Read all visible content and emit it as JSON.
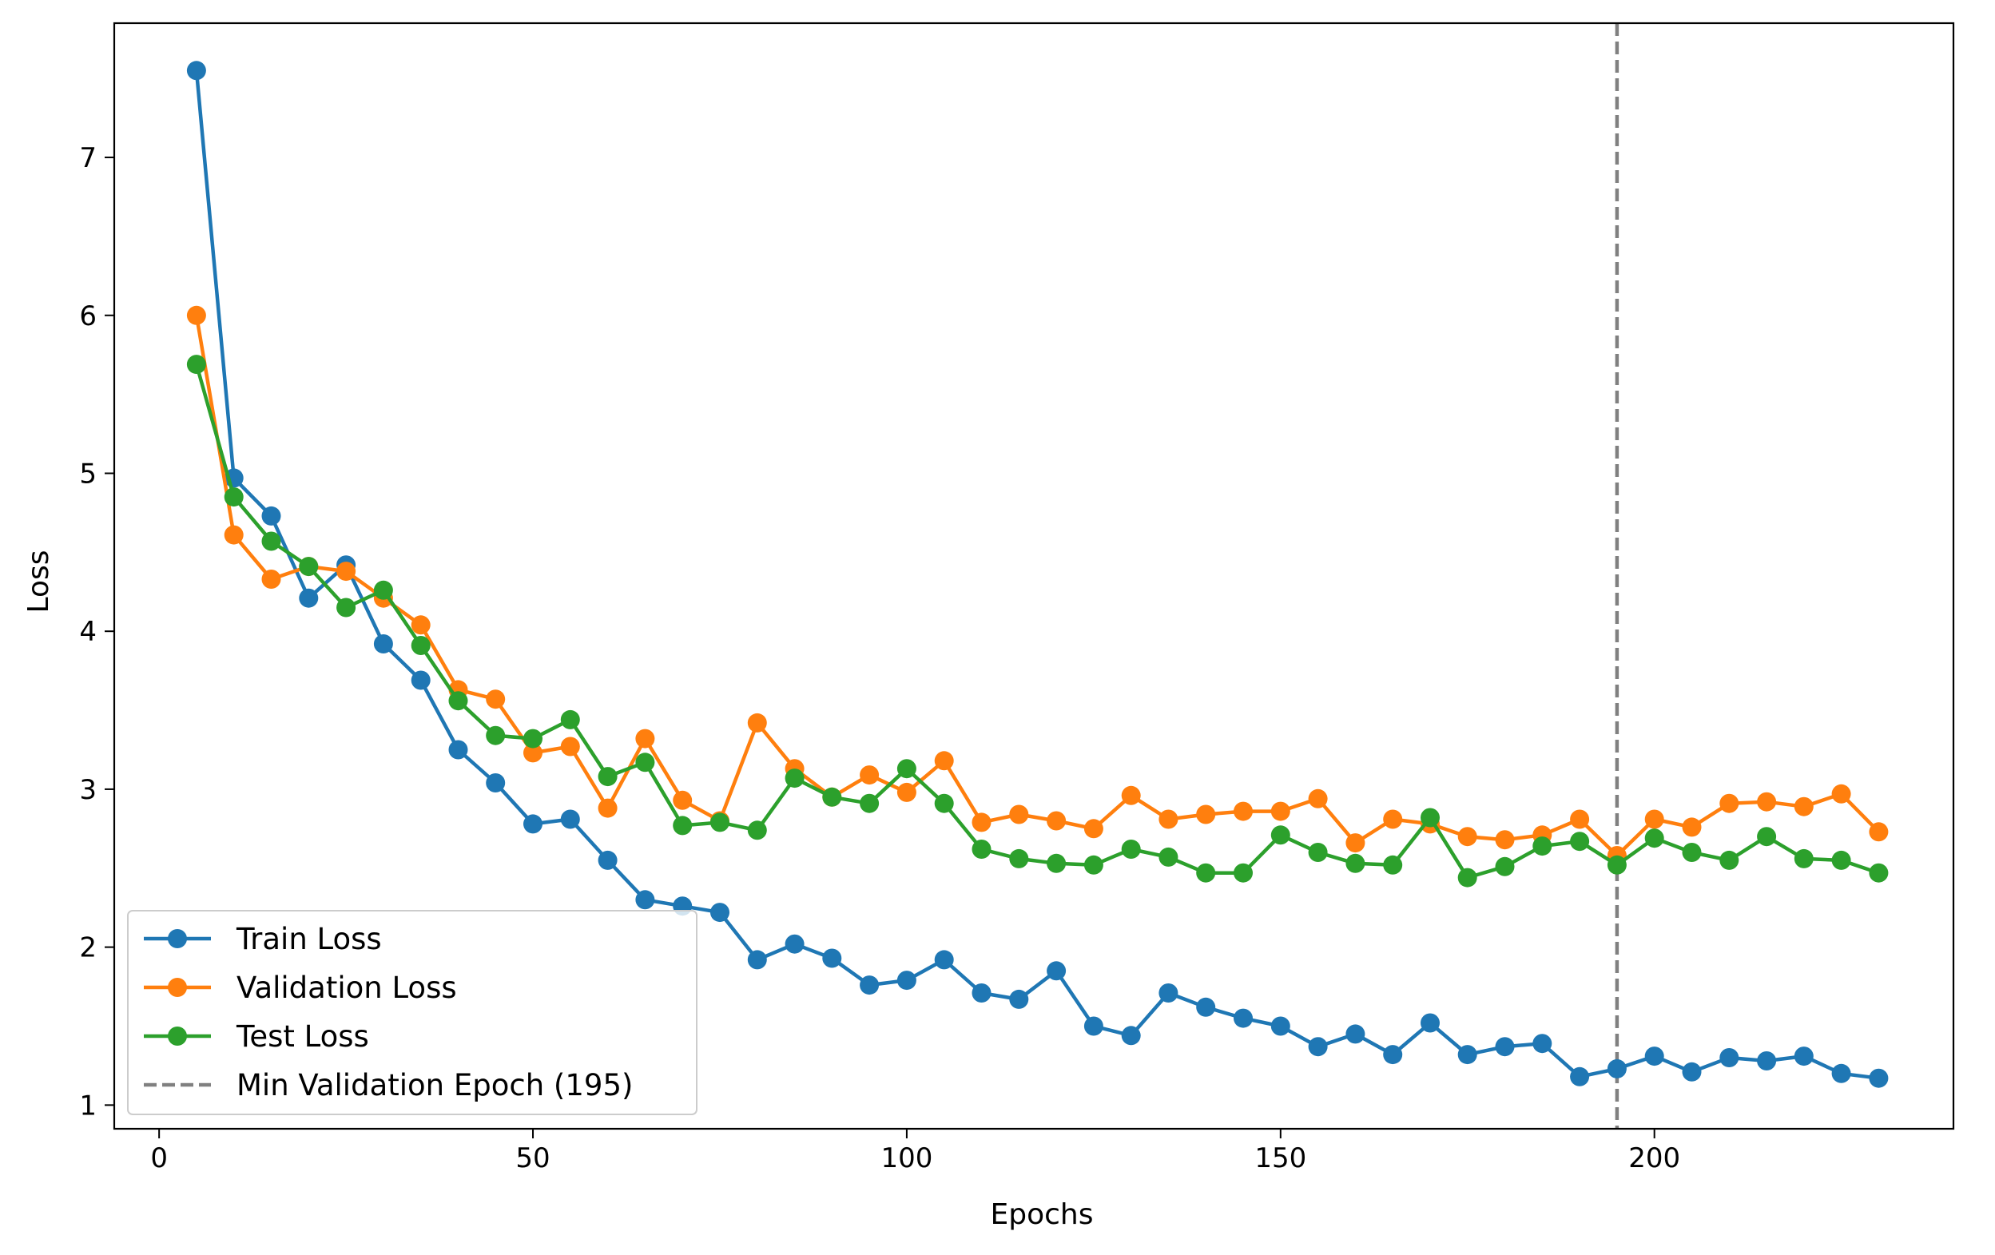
{
  "chart_data": {
    "type": "line",
    "title": "",
    "xlabel": "Epochs",
    "ylabel": "Loss",
    "xlim": [
      -6,
      240
    ],
    "ylim": [
      0.85,
      7.85
    ],
    "xticks": [
      0,
      50,
      100,
      150,
      200
    ],
    "yticks": [
      1,
      2,
      3,
      4,
      5,
      6,
      7
    ],
    "grid": false,
    "legend_position": "lower-left",
    "x": [
      5,
      10,
      15,
      20,
      25,
      30,
      35,
      40,
      45,
      50,
      55,
      60,
      65,
      70,
      75,
      80,
      85,
      90,
      95,
      100,
      105,
      110,
      115,
      120,
      125,
      130,
      135,
      140,
      145,
      150,
      155,
      160,
      165,
      170,
      175,
      180,
      185,
      190,
      195,
      200,
      205,
      210,
      215,
      220,
      225,
      230
    ],
    "series": [
      {
        "name": "Train Loss",
        "color": "#1f77b4",
        "values": [
          7.55,
          4.97,
          4.73,
          4.21,
          4.42,
          3.92,
          3.69,
          3.25,
          3.04,
          2.78,
          2.81,
          2.55,
          2.3,
          2.26,
          2.22,
          1.92,
          2.02,
          1.93,
          1.76,
          1.79,
          1.92,
          1.71,
          1.67,
          1.85,
          1.5,
          1.44,
          1.71,
          1.62,
          1.55,
          1.5,
          1.37,
          1.45,
          1.32,
          1.52,
          1.32,
          1.37,
          1.39,
          1.18,
          1.23,
          1.31,
          1.21,
          1.3,
          1.28,
          1.31,
          1.2,
          1.17
        ]
      },
      {
        "name": "Validation Loss",
        "color": "#ff7f0e",
        "values": [
          6.0,
          4.61,
          4.33,
          4.41,
          4.38,
          4.21,
          4.04,
          3.63,
          3.57,
          3.23,
          3.27,
          2.88,
          3.32,
          2.93,
          2.8,
          3.42,
          3.13,
          2.95,
          3.09,
          2.98,
          3.18,
          2.79,
          2.84,
          2.8,
          2.75,
          2.96,
          2.81,
          2.84,
          2.86,
          2.86,
          2.94,
          2.66,
          2.81,
          2.78,
          2.7,
          2.68,
          2.71,
          2.81,
          2.58,
          2.81,
          2.76,
          2.91,
          2.92,
          2.89,
          2.97,
          2.73
        ]
      },
      {
        "name": "Test Loss",
        "color": "#2ca02c",
        "values": [
          5.69,
          4.85,
          4.57,
          4.41,
          4.15,
          4.26,
          3.91,
          3.56,
          3.34,
          3.32,
          3.44,
          3.08,
          3.17,
          2.77,
          2.79,
          2.74,
          3.07,
          2.95,
          2.91,
          3.13,
          2.91,
          2.62,
          2.56,
          2.53,
          2.52,
          2.62,
          2.57,
          2.47,
          2.47,
          2.71,
          2.6,
          2.53,
          2.52,
          2.82,
          2.44,
          2.51,
          2.64,
          2.67,
          2.52,
          2.69,
          2.6,
          2.55,
          2.7,
          2.56,
          2.55,
          2.47
        ]
      }
    ],
    "vline": {
      "x": 195,
      "name": "Min Validation Epoch (195)",
      "color": "#808080",
      "style": "dashed"
    }
  }
}
